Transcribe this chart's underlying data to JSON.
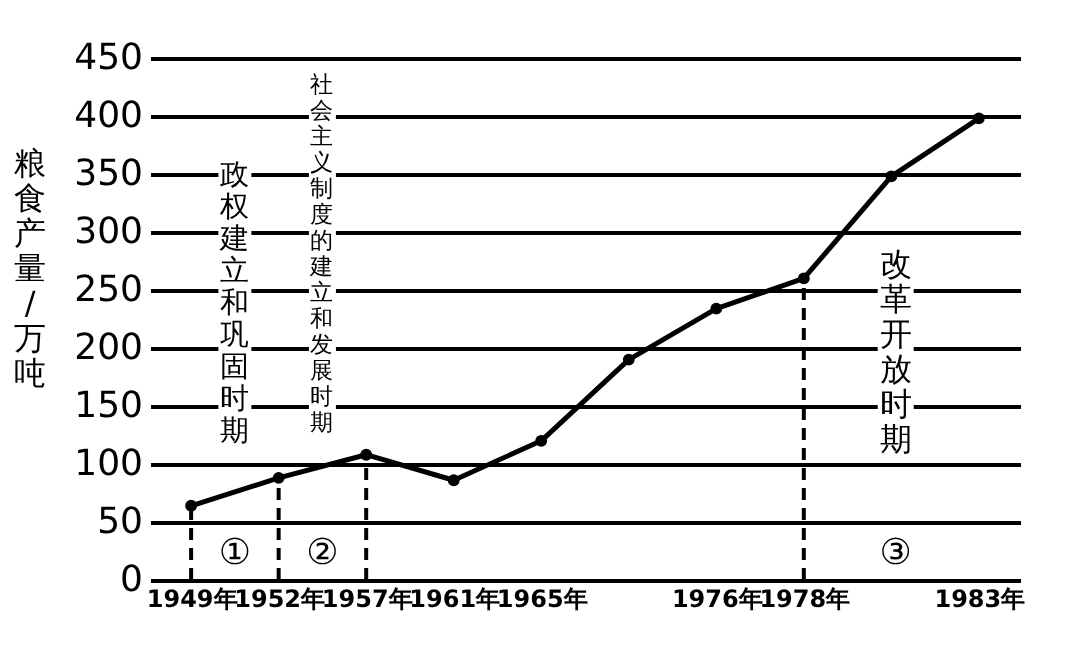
{
  "chart_data": {
    "type": "line",
    "ylabel": "粮食产量/万吨",
    "categories": [
      "1949年",
      "1952年",
      "1957年",
      "1961年",
      "1965年",
      null,
      "1976年",
      "1978年",
      null,
      "1983年"
    ],
    "values": [
      64,
      88,
      108,
      86,
      120,
      190,
      234,
      260,
      348,
      398
    ],
    "color": "#000000",
    "marker": "circle",
    "ylim": [
      0,
      450
    ],
    "yticks": [
      0,
      50,
      100,
      150,
      200,
      250,
      300,
      350,
      400,
      450
    ],
    "grid": "y",
    "ref_lines": [
      {
        "axis": "x",
        "value": "1949年",
        "line_style": "dashed"
      },
      {
        "axis": "x",
        "value": "1952年",
        "line_style": "dashed"
      },
      {
        "axis": "x",
        "value": "1957年",
        "line_style": "dashed"
      },
      {
        "axis": "x",
        "value": "1978年",
        "line_style": "dashed"
      }
    ],
    "annotations": [
      "政权建立和巩固时期",
      "社会主义制度的建立和发展时期",
      "改革开放时期",
      "①",
      "②",
      "③"
    ]
  }
}
